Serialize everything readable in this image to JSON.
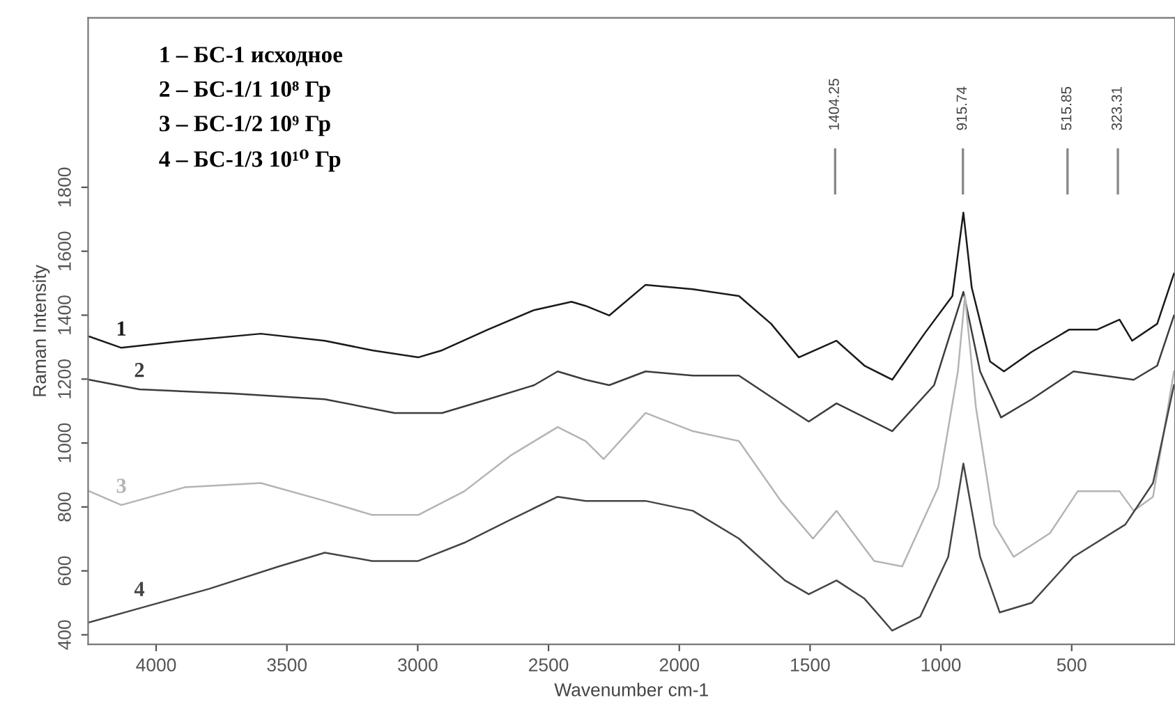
{
  "chart_data": {
    "type": "line",
    "xlabel": "Wavenumber cm-1",
    "ylabel": "Raman Intensity",
    "xlim": [
      4260,
      105
    ],
    "ylim": [
      370,
      2330
    ],
    "xticks": [
      4000,
      3500,
      3000,
      2500,
      2000,
      1500,
      1000,
      500
    ],
    "yticks": [
      400,
      600,
      800,
      1000,
      1200,
      1400,
      1600,
      1800
    ],
    "grid": false,
    "legend": false,
    "marker": "none",
    "line_style": "solid",
    "annotations": [
      "1 – БС-1 исходное",
      "2 – БС-1/1 10⁸ Гр",
      "3 – БС-1/2 10⁹ Гр",
      "4 – БС-1/3 10¹⁰ Гр"
    ],
    "ref_lines": [
      {
        "axis": "x",
        "value": 1404.25,
        "label": "1404.25",
        "color": "#888888"
      },
      {
        "axis": "x",
        "value": 915.74,
        "label": "915.74",
        "color": "#888888"
      },
      {
        "axis": "x",
        "value": 515.85,
        "label": "515.85",
        "color": "#888888"
      },
      {
        "axis": "x",
        "value": 323.31,
        "label": "323.31",
        "color": "#888888"
      }
    ],
    "series": [
      {
        "name": "1",
        "color": "#1a1a1a",
        "x": [
          4255,
          4133,
          3888,
          3600,
          3355,
          3174,
          2998,
          2907,
          2731,
          2555,
          2412,
          2358,
          2268,
          2129,
          1948,
          1772,
          1649,
          1543,
          1399,
          1292,
          1186,
          1063,
          956,
          914,
          882,
          812,
          759,
          653,
          509,
          402,
          317,
          269,
          173,
          109
        ],
        "values": [
          1333,
          1298,
          1320,
          1342,
          1320,
          1290,
          1268,
          1290,
          1355,
          1416,
          1442,
          1429,
          1399,
          1495,
          1481,
          1460,
          1373,
          1268,
          1320,
          1242,
          1198,
          1342,
          1460,
          1721,
          1486,
          1255,
          1224,
          1285,
          1355,
          1355,
          1386,
          1320,
          1373,
          1530
        ]
      },
      {
        "name": "2",
        "color": "#3c3c3c",
        "x": [
          4255,
          4064,
          3707,
          3355,
          3088,
          2907,
          2731,
          2555,
          2465,
          2358,
          2268,
          2129,
          1948,
          1772,
          1612,
          1505,
          1399,
          1186,
          1026,
          914,
          850,
          770,
          653,
          493,
          263,
          173,
          109
        ],
        "values": [
          1198,
          1168,
          1155,
          1137,
          1094,
          1094,
          1137,
          1181,
          1224,
          1198,
          1181,
          1224,
          1211,
          1211,
          1124,
          1067,
          1124,
          1037,
          1181,
          1473,
          1224,
          1080,
          1137,
          1224,
          1198,
          1242,
          1399
        ]
      },
      {
        "name": "3",
        "color": "#b4b4b4",
        "x": [
          4255,
          4133,
          3888,
          3600,
          3355,
          3174,
          2998,
          2822,
          2641,
          2465,
          2358,
          2289,
          2129,
          1948,
          1772,
          1612,
          1489,
          1399,
          1255,
          1148,
          1010,
          935,
          908,
          866,
          796,
          722,
          583,
          477,
          317,
          263,
          189,
          109
        ],
        "values": [
          849,
          806,
          862,
          875,
          819,
          775,
          775,
          849,
          963,
          1050,
          1006,
          950,
          1094,
          1037,
          1006,
          819,
          701,
          788,
          631,
          614,
          862,
          1224,
          1460,
          1111,
          745,
          644,
          718,
          849,
          849,
          788,
          832,
          1224
        ]
      },
      {
        "name": "4",
        "color": "#454545",
        "x": [
          4255,
          4064,
          3797,
          3531,
          3355,
          3174,
          2998,
          2822,
          2641,
          2465,
          2358,
          2129,
          1948,
          1772,
          1596,
          1505,
          1399,
          1292,
          1186,
          1079,
          972,
          914,
          850,
          775,
          653,
          493,
          295,
          189,
          109
        ],
        "values": [
          439,
          483,
          544,
          614,
          657,
          631,
          631,
          688,
          762,
          832,
          819,
          819,
          788,
          701,
          570,
          527,
          570,
          513,
          413,
          457,
          644,
          936,
          644,
          470,
          500,
          644,
          745,
          875,
          1181
        ]
      }
    ]
  }
}
